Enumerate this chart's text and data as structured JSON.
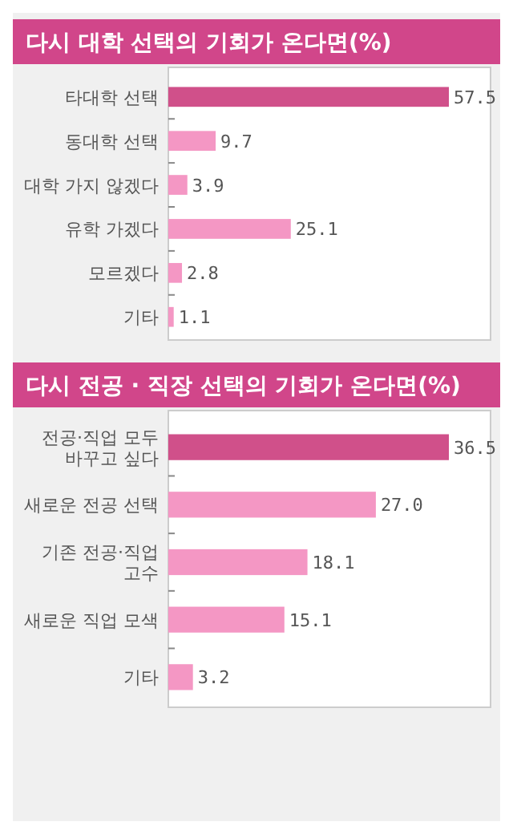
{
  "chart_data": [
    {
      "type": "bar",
      "orientation": "horizontal",
      "title": "다시 대학 선택의 기회가 온다면(%)",
      "categories": [
        "타대학 선택",
        "동대학 선택",
        "대학 가지 않겠다",
        "유학 가겠다",
        "모르겠다",
        "기타"
      ],
      "values": [
        57.5,
        9.7,
        3.9,
        25.1,
        2.8,
        1.1
      ],
      "value_labels": [
        "57.5",
        "9.7",
        "3.9",
        "25.1",
        "2.8",
        "1.1"
      ],
      "colors": [
        "#d0508a",
        "#f497c4",
        "#f497c4",
        "#f497c4",
        "#f497c4",
        "#f497c4"
      ]
    },
    {
      "type": "bar",
      "orientation": "horizontal",
      "title": "다시 전공 · 직장 선택의 기회가 온다면(%)",
      "categories": [
        "전공·직업 모두 바꾸고 싶다",
        "새로운 전공 선택",
        "기존 전공·직업 고수",
        "새로운 직업 모색",
        "기타"
      ],
      "values": [
        36.5,
        27.0,
        18.1,
        15.1,
        3.2
      ],
      "value_labels": [
        "36.5",
        "27.0",
        "18.1",
        "15.1",
        "3.2"
      ],
      "colors": [
        "#d0508a",
        "#f497c4",
        "#f497c4",
        "#f497c4",
        "#f497c4"
      ]
    }
  ]
}
